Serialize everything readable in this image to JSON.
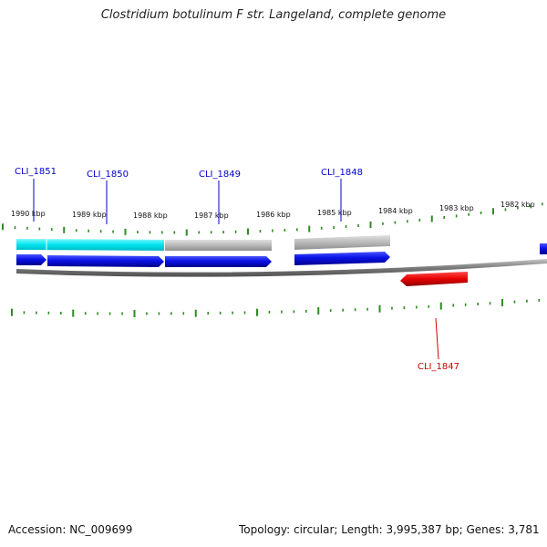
{
  "title": "Clostridium botulinum F str. Langeland, complete genome",
  "footer": {
    "accession": "Accession: NC_009699",
    "summary": "Topology: circular; Length: 3,995,387 bp; Genes: 3,781"
  },
  "ruler_labels": [
    "1990 kbp",
    "1989 kbp",
    "1988 kbp",
    "1987 kbp",
    "1986 kbp",
    "1985 kbp",
    "1984 kbp",
    "1983 kbp",
    "1982 kbp"
  ],
  "genes": [
    {
      "name": "CLI_1851",
      "color": "#0000cc",
      "strand": "forward"
    },
    {
      "name": "CLI_1850",
      "color": "#0000cc",
      "strand": "forward"
    },
    {
      "name": "CLI_1849",
      "color": "#0000cc",
      "strand": "forward"
    },
    {
      "name": "CLI_1848",
      "color": "#0000cc",
      "strand": "forward"
    },
    {
      "name": "CLI_1847",
      "color": "#cc0000",
      "strand": "reverse"
    }
  ],
  "colors": {
    "forward_gene": "#0a12e6",
    "reverse_gene": "#e60000",
    "feature_cyan": "#00e5ee",
    "feature_gray": "#b4b4b4",
    "tick": "#2e8b22",
    "backbone": "#7a7a7a"
  }
}
